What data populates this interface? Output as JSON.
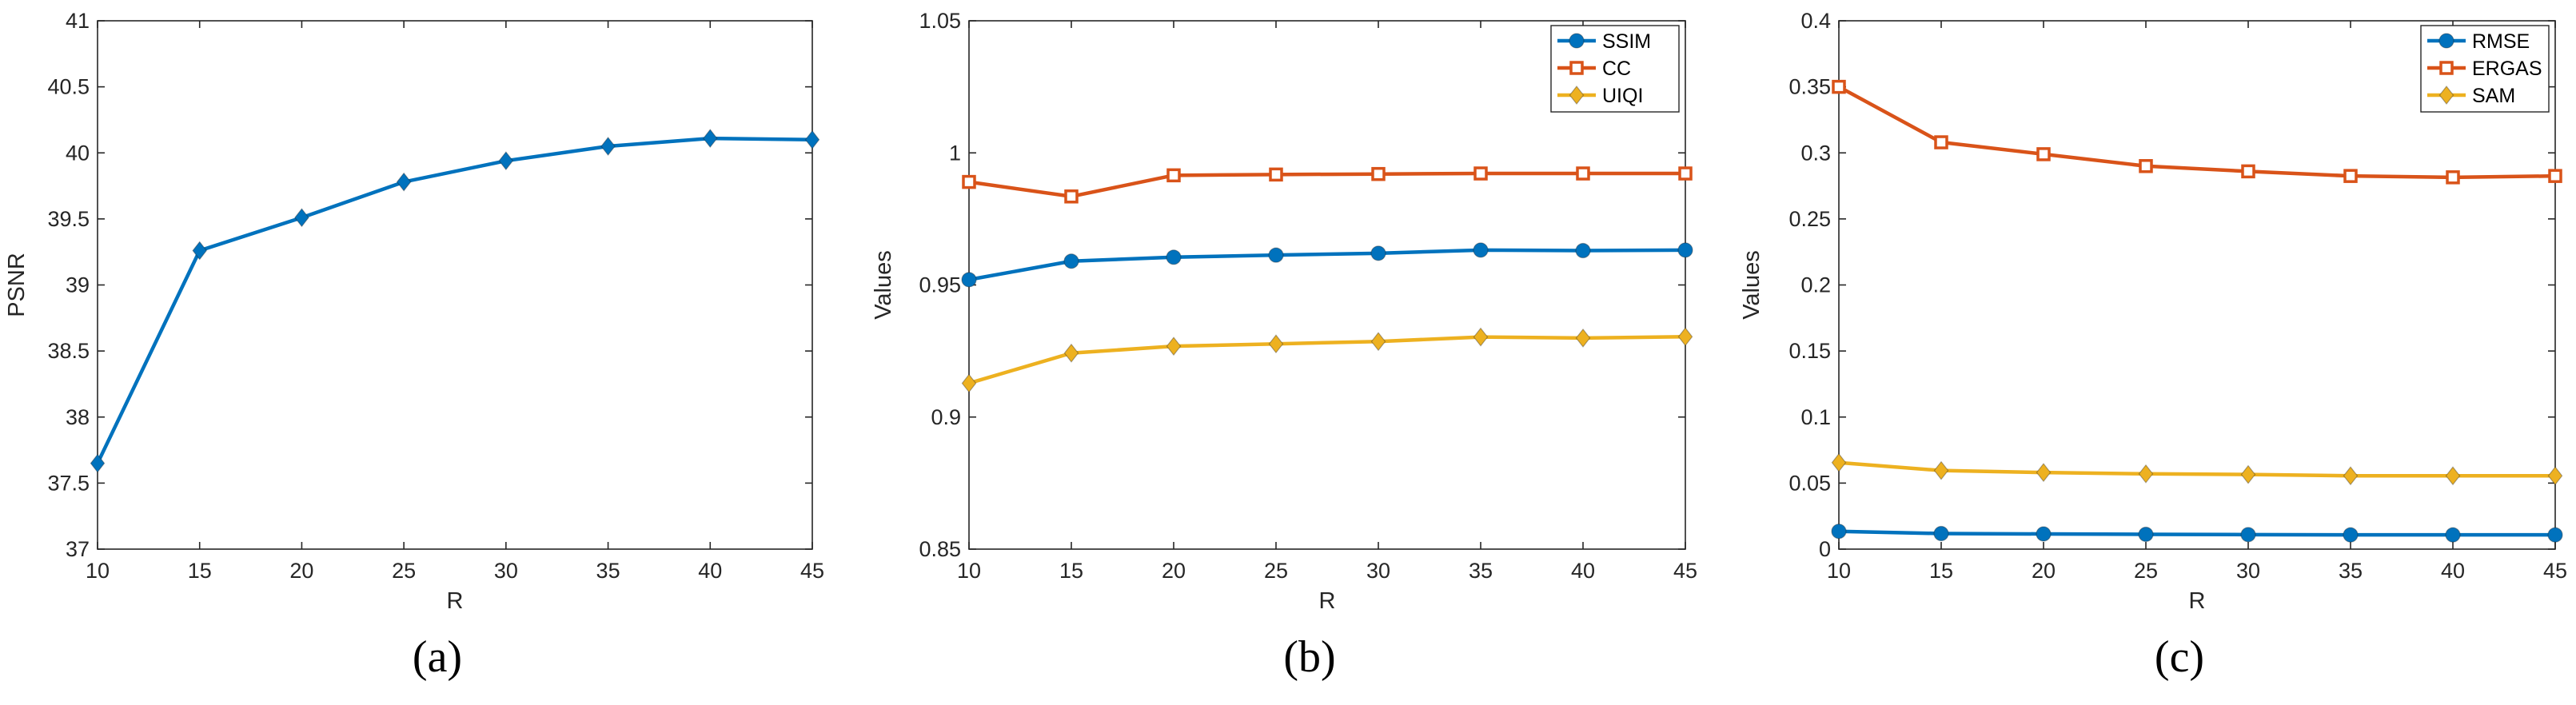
{
  "chart_data": [
    {
      "type": "line",
      "caption": "(a)",
      "title": "",
      "xlabel": "R",
      "ylabel": "PSNR",
      "x": [
        10,
        15,
        20,
        25,
        30,
        35,
        40,
        45
      ],
      "xlim": [
        10,
        45
      ],
      "ylim": [
        37,
        41
      ],
      "xticks": [
        10,
        15,
        20,
        25,
        30,
        35,
        40,
        45
      ],
      "xtick_labels": [
        "10",
        "15",
        "20",
        "25",
        "30",
        "35",
        "40",
        "45"
      ],
      "yticks": [
        37,
        37.5,
        38,
        38.5,
        39,
        39.5,
        40,
        40.5,
        41
      ],
      "ytick_labels": [
        "37",
        "37.5",
        "38",
        "38.5",
        "39",
        "39.5",
        "40",
        "40.5",
        "41"
      ],
      "grid": false,
      "legend": null,
      "series": [
        {
          "name": "PSNR",
          "color": "#0072BD",
          "marker": "diamond",
          "values": [
            37.65,
            39.26,
            39.51,
            39.78,
            39.94,
            40.05,
            40.11,
            40.1
          ]
        }
      ]
    },
    {
      "type": "line",
      "caption": "(b)",
      "title": "",
      "xlabel": "R",
      "ylabel": "Values",
      "x": [
        10,
        15,
        20,
        25,
        30,
        35,
        40,
        45
      ],
      "xlim": [
        10,
        45
      ],
      "ylim": [
        0.85,
        1.05
      ],
      "xticks": [
        10,
        15,
        20,
        25,
        30,
        35,
        40,
        45
      ],
      "xtick_labels": [
        "10",
        "15",
        "20",
        "25",
        "30",
        "35",
        "40",
        "45"
      ],
      "yticks": [
        0.85,
        0.9,
        0.95,
        1,
        1.05
      ],
      "ytick_labels": [
        "0.85",
        "0.9",
        "0.95",
        "1",
        "1.05"
      ],
      "grid": false,
      "legend": "top-right",
      "series": [
        {
          "name": "SSIM",
          "color": "#0072BD",
          "marker": "circle",
          "values": [
            0.952,
            0.959,
            0.9605,
            0.9613,
            0.962,
            0.9632,
            0.963,
            0.9632
          ]
        },
        {
          "name": "CC",
          "color": "#D95319",
          "marker": "square",
          "values": [
            0.989,
            0.9835,
            0.9915,
            0.9918,
            0.992,
            0.9922,
            0.9922,
            0.9922
          ]
        },
        {
          "name": "UIQI",
          "color": "#EDB120",
          "marker": "diamond",
          "values": [
            0.9128,
            0.9242,
            0.9268,
            0.9277,
            0.9286,
            0.9303,
            0.9299,
            0.9304
          ]
        }
      ]
    },
    {
      "type": "line",
      "caption": "(c)",
      "title": "",
      "xlabel": "R",
      "ylabel": "Values",
      "x": [
        10,
        15,
        20,
        25,
        30,
        35,
        40,
        45
      ],
      "xlim": [
        10,
        45
      ],
      "ylim": [
        0,
        0.4
      ],
      "xticks": [
        10,
        15,
        20,
        25,
        30,
        35,
        40,
        45
      ],
      "xtick_labels": [
        "10",
        "15",
        "20",
        "25",
        "30",
        "35",
        "40",
        "45"
      ],
      "yticks": [
        0,
        0.05,
        0.1,
        0.15,
        0.2,
        0.25,
        0.3,
        0.35,
        0.4
      ],
      "ytick_labels": [
        "0",
        "0.05",
        "0.1",
        "0.15",
        "0.2",
        "0.25",
        "0.3",
        "0.35",
        "0.4"
      ],
      "grid": false,
      "legend": "top-right",
      "series": [
        {
          "name": "RMSE",
          "color": "#0072BD",
          "marker": "circle",
          "values": [
            0.0135,
            0.0118,
            0.0115,
            0.0112,
            0.011,
            0.0108,
            0.0108,
            0.0108
          ]
        },
        {
          "name": "ERGAS",
          "color": "#D95319",
          "marker": "square",
          "values": [
            0.35,
            0.308,
            0.299,
            0.29,
            0.286,
            0.2825,
            0.2815,
            0.2825
          ]
        },
        {
          "name": "SAM",
          "color": "#EDB120",
          "marker": "diamond",
          "values": [
            0.0655,
            0.0595,
            0.058,
            0.057,
            0.0565,
            0.0555,
            0.0555,
            0.0555
          ]
        }
      ]
    }
  ]
}
